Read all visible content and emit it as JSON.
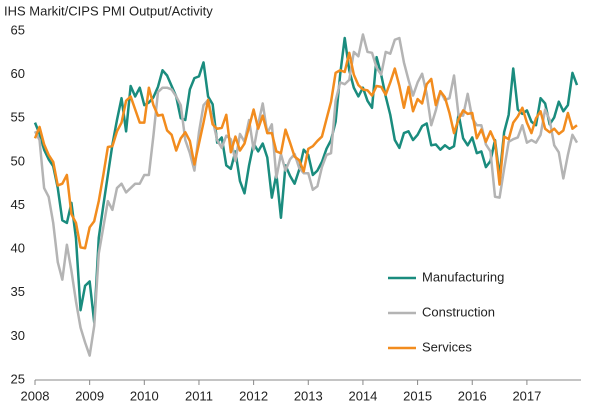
{
  "chart_data": {
    "type": "line",
    "title": "IHS Markit/CIPS PMI Output/Activity",
    "categories": [
      "2008",
      null,
      null,
      null,
      null,
      null,
      null,
      null,
      null,
      null,
      null,
      null,
      "2009",
      null,
      null,
      null,
      null,
      null,
      null,
      null,
      null,
      null,
      null,
      null,
      "2010",
      null,
      null,
      null,
      null,
      null,
      null,
      null,
      null,
      null,
      null,
      null,
      "2011",
      null,
      null,
      null,
      null,
      null,
      null,
      null,
      null,
      null,
      null,
      null,
      "2012",
      null,
      null,
      null,
      null,
      null,
      null,
      null,
      null,
      null,
      null,
      null,
      "2013",
      null,
      null,
      null,
      null,
      null,
      null,
      null,
      null,
      null,
      null,
      null,
      "2014",
      null,
      null,
      null,
      null,
      null,
      null,
      null,
      null,
      null,
      null,
      null,
      "2015",
      null,
      null,
      null,
      null,
      null,
      null,
      null,
      null,
      null,
      null,
      null,
      "2016",
      null,
      null,
      null,
      null,
      null,
      null,
      null,
      null,
      null,
      null,
      null,
      "2017",
      null,
      null,
      null,
      null,
      null,
      null,
      null,
      null,
      null,
      null,
      null
    ],
    "ylim": [
      25,
      65
    ],
    "yticks": [
      25,
      30,
      35,
      40,
      45,
      50,
      55,
      60,
      65
    ],
    "grid": false,
    "legend": "lower right",
    "series": [
      {
        "name": "Manufacturing",
        "color": "#1a8c7e",
        "values": [
          54.5,
          53.2,
          51.4,
          50.3,
          49.5,
          47.0,
          43.3,
          43.0,
          45.3,
          41.2,
          33.0,
          35.8,
          36.3,
          31.6,
          41.3,
          45.0,
          48.5,
          52.0,
          54.8,
          57.3,
          53.5,
          58.7,
          57.5,
          58.5,
          56.5,
          56.8,
          57.4,
          58.6,
          60.5,
          59.9,
          58.7,
          57.5,
          55.0,
          54.8,
          58.3,
          59.6,
          59.8,
          61.4,
          57.5,
          56.6,
          52.2,
          52.8,
          49.6,
          49.2,
          51.2,
          47.8,
          46.4,
          49.6,
          52.1,
          51.2,
          52.1,
          50.5,
          45.9,
          48.6,
          43.6,
          49.6,
          48.4,
          47.5,
          49.1,
          51.4,
          50.8,
          48.5,
          49.0,
          50.0,
          51.5,
          52.5,
          54.6,
          60.0,
          64.2,
          60.5,
          58.5,
          57.5,
          58.5,
          57.0,
          56.2,
          62.0,
          60.0,
          57.5,
          55.4,
          52.5,
          51.6,
          53.3,
          53.5,
          52.5,
          53.1,
          54.1,
          54.4,
          51.9,
          52.0,
          51.4,
          51.9,
          51.5,
          51.8,
          55.5,
          52.7,
          51.9,
          52.8,
          51.0,
          51.2,
          49.4,
          50.1,
          52.5,
          48.3,
          53.4,
          55.4,
          60.7,
          56.0,
          55.5,
          55.9,
          54.6,
          54.2,
          57.3,
          56.7,
          54.3,
          55.1,
          56.9,
          55.8,
          56.5,
          60.2,
          58.8
        ]
      },
      {
        "name": "Construction",
        "color": "#b4b4b4",
        "values": [
          53.5,
          52.5,
          47.0,
          46.0,
          43.0,
          38.5,
          36.5,
          40.5,
          37.5,
          34.0,
          31.0,
          29.3,
          27.8,
          31.2,
          39.5,
          42.5,
          45.5,
          44.5,
          47.0,
          47.5,
          46.5,
          47.0,
          47.5,
          47.5,
          48.5,
          48.5,
          53.0,
          58.0,
          58.5,
          58.5,
          58.3,
          57.5,
          56.5,
          52.5,
          51.0,
          49.0,
          53.4,
          56.5,
          57.1,
          54.8,
          52.5,
          51.6,
          53.0,
          52.6,
          50.1,
          53.2,
          52.3,
          54.8,
          51.4,
          54.3,
          56.7,
          53.3,
          54.3,
          48.2,
          50.9,
          49.0,
          50.3,
          50.9,
          49.3,
          48.7,
          48.7,
          46.8,
          47.2,
          49.4,
          50.8,
          51.0,
          57.0,
          59.1,
          58.9,
          59.4,
          62.6,
          62.1,
          64.6,
          62.6,
          62.5,
          60.8,
          60.0,
          62.6,
          62.4,
          64.0,
          64.2,
          61.4,
          59.4,
          57.6,
          59.1,
          60.1,
          57.8,
          54.2,
          55.9,
          58.1,
          57.1,
          57.3,
          59.9,
          55.3,
          55.3,
          57.8,
          55.0,
          54.2,
          54.2,
          52.0,
          51.2,
          46.0,
          45.9,
          49.2,
          52.3,
          52.6,
          52.8,
          54.2,
          52.2,
          52.5,
          52.2,
          53.1,
          56.0,
          54.8,
          51.9,
          51.1,
          48.1,
          50.8,
          53.1,
          52.2
        ]
      },
      {
        "name": "Services",
        "color": "#f28c1e",
        "values": [
          52.7,
          54.0,
          52.0,
          50.8,
          50.0,
          47.3,
          47.5,
          48.5,
          44.0,
          43.0,
          40.2,
          40.1,
          42.5,
          43.2,
          45.5,
          48.5,
          51.7,
          51.8,
          53.5,
          54.5,
          57.0,
          57.5,
          56.0,
          54.5,
          54.5,
          58.5,
          56.5,
          55.3,
          55.4,
          53.6,
          53.1,
          51.3,
          52.7,
          53.4,
          52.4,
          49.7,
          52.1,
          54.5,
          57.1,
          54.3,
          53.8,
          53.9,
          55.4,
          51.1,
          52.9,
          51.3,
          52.1,
          54.0,
          56.0,
          53.8,
          55.3,
          53.3,
          53.3,
          51.2,
          51.0,
          53.7,
          52.2,
          50.6,
          50.2,
          48.9,
          51.5,
          51.8,
          52.4,
          52.9,
          54.9,
          56.9,
          60.2,
          60.5,
          60.3,
          62.5,
          60.0,
          58.8,
          58.3,
          58.2,
          57.6,
          58.7,
          58.6,
          57.7,
          59.1,
          60.7,
          58.7,
          56.2,
          58.6,
          55.8,
          57.2,
          56.7,
          58.9,
          59.5,
          56.5,
          58.1,
          57.4,
          55.6,
          53.3,
          54.9,
          55.9,
          55.5,
          55.6,
          52.7,
          53.7,
          52.3,
          53.5,
          52.3,
          47.4,
          52.9,
          52.6,
          54.5,
          55.2,
          56.2,
          54.5,
          53.3,
          55.0,
          55.8,
          53.8,
          53.4,
          53.8,
          53.2,
          53.6,
          55.6,
          53.8,
          54.2
        ]
      }
    ]
  }
}
